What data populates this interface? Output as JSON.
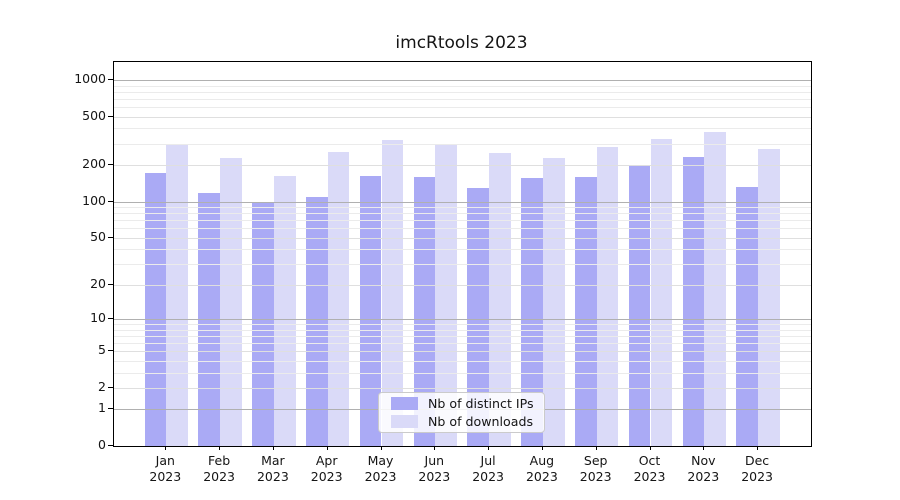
{
  "chart_data": {
    "type": "bar",
    "title": "imcRtools 2023",
    "categories": [
      "Jan",
      "Feb",
      "Mar",
      "Apr",
      "May",
      "Jun",
      "Jul",
      "Aug",
      "Sep",
      "Oct",
      "Nov",
      "Dec"
    ],
    "year_label": "2023",
    "series": [
      {
        "name": "Nb of distinct IPs",
        "color": "#aaaaf5",
        "values": [
          172,
          118,
          97,
          109,
          163,
          160,
          130,
          157,
          158,
          198,
          234,
          131
        ]
      },
      {
        "name": "Nb of downloads",
        "color": "#dadaf8",
        "values": [
          296,
          228,
          162,
          255,
          323,
          294,
          252,
          227,
          281,
          327,
          375,
          269
        ]
      }
    ],
    "ylabel": "",
    "xlabel": "",
    "y_scale": "log1p",
    "y_ticks": [
      1000,
      500,
      200,
      100,
      50,
      20,
      10,
      5,
      2,
      1,
      0
    ],
    "ylim": [
      0,
      1400
    ],
    "grid": true,
    "legend_position": "lower center",
    "colors": {
      "decade_gridline": "#b0b0b0",
      "labeled_gridline": "#dfdfdf",
      "minor_gridline": "#ebebeb",
      "spine": "#000000",
      "background": "#ffffff"
    }
  }
}
